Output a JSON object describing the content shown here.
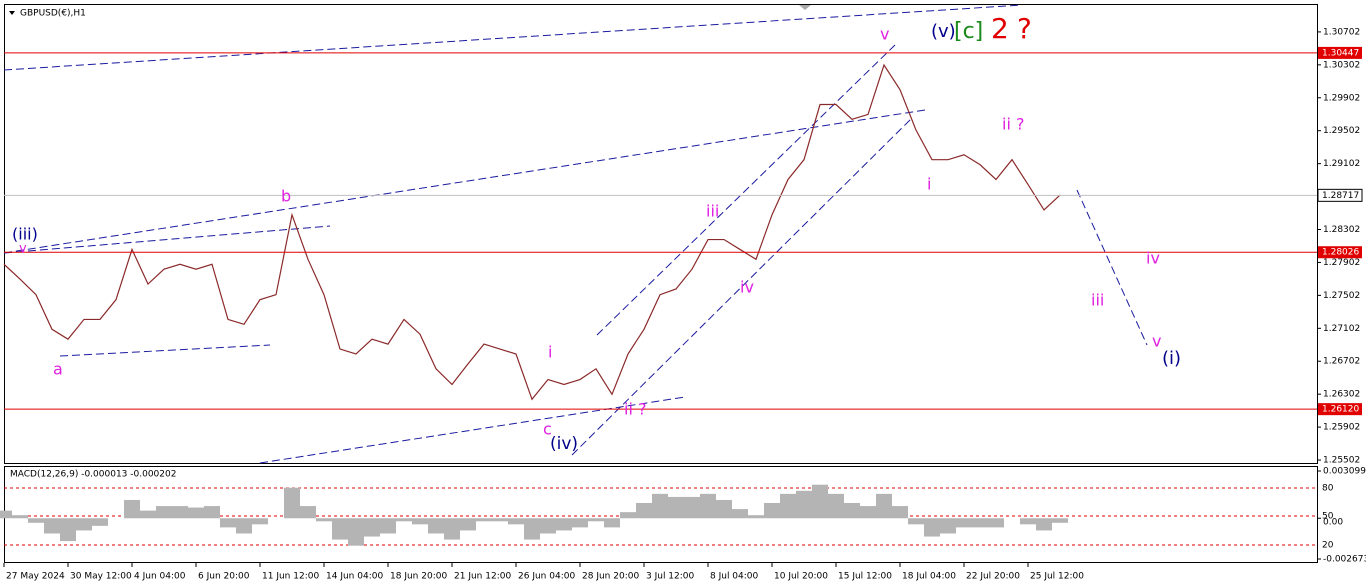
{
  "chart_data": [
    {
      "type": "line",
      "title": "GBPUSD(€),H1",
      "x": [
        "27 May 2024",
        null,
        null,
        null,
        "30 May 12:00",
        null,
        null,
        null,
        "4 Jun 04:00",
        null,
        null,
        null,
        "6 Jun 20:00",
        null,
        null,
        null,
        "11 Jun 12:00",
        null,
        null,
        null,
        "14 Jun 04:00",
        null,
        null,
        null,
        "18 Jun 20:00",
        null,
        null,
        null,
        "21 Jun 12:00",
        null,
        null,
        null,
        "26 Jun 04:00",
        null,
        null,
        null,
        "28 Jun 20:00",
        null,
        null,
        null,
        "3 Jul 12:00",
        null,
        null,
        null,
        "8 Jul 04:00",
        null,
        null,
        null,
        "10 Jul 20:00",
        null,
        null,
        null,
        "15 Jul 12:00",
        null,
        null,
        null,
        "18 Jul 04:00",
        null,
        null,
        null,
        "22 Jul 20:00",
        null,
        null,
        null,
        "25 Jul 12:00",
        null,
        null
      ],
      "series": [
        {
          "color": "#8b2a2a",
          "values": [
            1.2788,
            1.277,
            1.2751,
            1.2709,
            1.2697,
            1.2721,
            1.2721,
            1.2745,
            1.2806,
            1.2764,
            1.2782,
            1.2788,
            1.2782,
            1.2788,
            1.2721,
            1.2715,
            1.2745,
            1.2751,
            1.2848,
            1.2794,
            1.2751,
            1.2685,
            1.2679,
            1.2697,
            1.2691,
            1.2721,
            1.2703,
            1.2661,
            1.2642,
            1.2667,
            1.2691,
            1.2685,
            1.2679,
            1.2624,
            1.2648,
            1.2642,
            1.2648,
            1.2661,
            1.263,
            1.2679,
            1.2709,
            1.2751,
            1.2758,
            1.2782,
            1.2818,
            1.2818,
            1.2806,
            1.2794,
            1.2848,
            1.2891,
            1.2915,
            1.2982,
            1.2982,
            1.2964,
            1.297,
            1.303,
            1.3,
            1.2951,
            1.2915,
            1.2915,
            1.2921,
            1.2909,
            1.2891,
            1.2915,
            1.2885,
            1.2854,
            1.2872
          ]
        }
      ],
      "ylim": [
        1.25466,
        1.31041
      ],
      "yticks": [
        1.25502,
        1.25902,
        1.26302,
        1.26702,
        1.27102,
        1.27502,
        1.27902,
        1.28302,
        1.29102,
        1.29502,
        1.29902,
        1.30302,
        1.30702
      ],
      "levels": [
        {
          "value": 1.30447,
          "color": "#e00000"
        },
        {
          "value": 1.28026,
          "color": "#e00000"
        },
        {
          "value": 1.2612,
          "label": "1.26120",
          "color": "#e00000"
        }
      ],
      "current_price": 1.28717,
      "annotations": [
        {
          "text": "(iii)",
          "color": "#00008b"
        },
        {
          "text": "v",
          "color": "#e020e0"
        },
        {
          "text": "a",
          "color": "#e020e0"
        },
        {
          "text": "b",
          "color": "#e020e0"
        },
        {
          "text": "i",
          "color": "#e020e0"
        },
        {
          "text": "c",
          "color": "#e020e0"
        },
        {
          "text": "(iv)",
          "color": "#00008b"
        },
        {
          "text": "ii ?",
          "color": "#e020e0"
        },
        {
          "text": "iii",
          "color": "#e020e0"
        },
        {
          "text": "iv",
          "color": "#e020e0"
        },
        {
          "text": "v",
          "color": "#e020e0"
        },
        {
          "text": "(v)",
          "color": "#00008b"
        },
        {
          "text": "[c]",
          "color": "#1a8a1a"
        },
        {
          "text": "2",
          "color": "#e00000"
        },
        {
          "text": "?",
          "color": "#e00000"
        },
        {
          "text": "ii ?",
          "color": "#e020e0"
        },
        {
          "text": "i",
          "color": "#e020e0"
        },
        {
          "text": "iv",
          "color": "#e020e0"
        },
        {
          "text": "iii",
          "color": "#e020e0"
        },
        {
          "text": "v",
          "color": "#e020e0"
        },
        {
          "text": "(i)",
          "color": "#00008b"
        }
      ]
    },
    {
      "type": "bar",
      "title": "MACD(12,26,9) -0.000013 -0.000202",
      "color": "#b4b4b4",
      "values": [
        0.0005,
        0.0002,
        -0.0003,
        -0.001,
        -0.0015,
        -0.0008,
        -0.0005,
        0,
        0.0012,
        0.0005,
        0.0008,
        0.0008,
        0.0007,
        0.0008,
        -0.0006,
        -0.001,
        -0.0004,
        0,
        0.002,
        0.0008,
        -0.0002,
        -0.0014,
        -0.0018,
        -0.0012,
        -0.001,
        -0.0002,
        -0.0004,
        -0.001,
        -0.0014,
        -0.0008,
        -0.0002,
        -0.0002,
        -0.0004,
        -0.0014,
        -0.001,
        -0.0008,
        -0.0006,
        -0.0002,
        -0.0006,
        0.0004,
        0.001,
        0.0016,
        0.0014,
        0.0014,
        0.0016,
        0.0012,
        0.0006,
        0.0002,
        0.001,
        0.0016,
        0.0018,
        0.0022,
        0.0016,
        0.001,
        0.0008,
        0.0016,
        0.0008,
        -0.0004,
        -0.0012,
        -0.001,
        -0.0006,
        -0.0006,
        -0.0006,
        0,
        -0.0004,
        -0.0008,
        -0.0003
      ],
      "ylim": [
        -0.00287,
        0.003427
      ],
      "yticks": [
        -0.002673,
        {
          "value": 0,
          "label": "0.00"
        },
        0.003099
      ],
      "level_labels": [
        "80",
        "50",
        "20"
      ]
    }
  ]
}
